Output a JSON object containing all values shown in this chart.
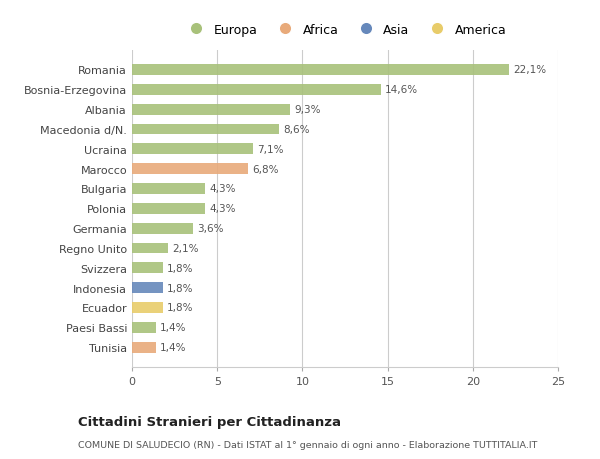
{
  "categories": [
    "Romania",
    "Bosnia-Erzegovina",
    "Albania",
    "Macedonia d/N.",
    "Ucraina",
    "Marocco",
    "Bulgaria",
    "Polonia",
    "Germania",
    "Regno Unito",
    "Svizzera",
    "Indonesia",
    "Ecuador",
    "Paesi Bassi",
    "Tunisia"
  ],
  "values": [
    22.1,
    14.6,
    9.3,
    8.6,
    7.1,
    6.8,
    4.3,
    4.3,
    3.6,
    2.1,
    1.8,
    1.8,
    1.8,
    1.4,
    1.4
  ],
  "labels": [
    "22,1%",
    "14,6%",
    "9,3%",
    "8,6%",
    "7,1%",
    "6,8%",
    "4,3%",
    "4,3%",
    "3,6%",
    "2,1%",
    "1,8%",
    "1,8%",
    "1,8%",
    "1,4%",
    "1,4%"
  ],
  "continents": [
    "Europa",
    "Europa",
    "Europa",
    "Europa",
    "Europa",
    "Africa",
    "Europa",
    "Europa",
    "Europa",
    "Europa",
    "Europa",
    "Asia",
    "America",
    "Europa",
    "Africa"
  ],
  "continent_colors": {
    "Europa": "#a8c17a",
    "Africa": "#e8aa7a",
    "Asia": "#6688bb",
    "America": "#e8cc6a"
  },
  "legend_entries": [
    "Europa",
    "Africa",
    "Asia",
    "America"
  ],
  "legend_colors": [
    "#a8c17a",
    "#e8aa7a",
    "#6688bb",
    "#e8cc6a"
  ],
  "xlim": [
    0,
    25
  ],
  "xticks": [
    0,
    5,
    10,
    15,
    20,
    25
  ],
  "title": "Cittadini Stranieri per Cittadinanza",
  "subtitle": "COMUNE DI SALUDECIO (RN) - Dati ISTAT al 1° gennaio di ogni anno - Elaborazione TUTTITALIA.IT",
  "background_color": "#ffffff",
  "plot_bg_color": "#ffffff",
  "grid_color": "#cccccc"
}
